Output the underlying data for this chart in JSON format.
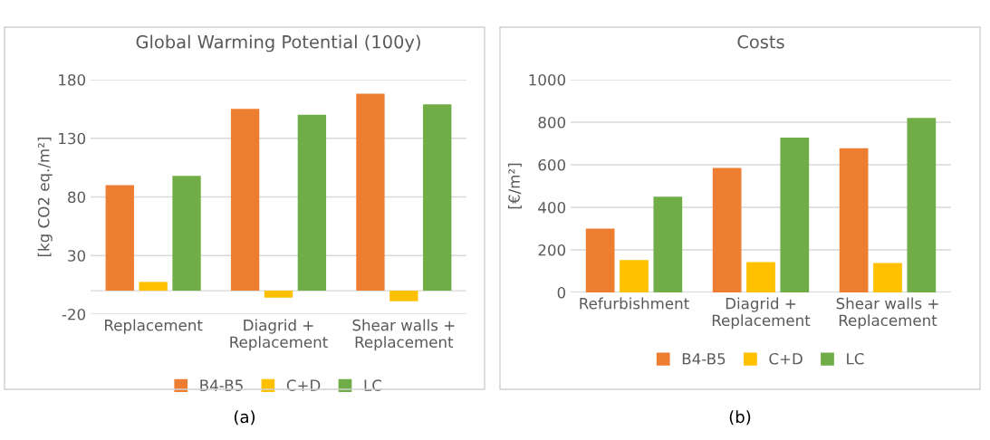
{
  "chart_data": [
    {
      "type": "bar",
      "title": "Global Warming Potential (100y)",
      "ylabel": "[kg CO2 eq./m²]",
      "categories": [
        "Replacement",
        "Diagrid +\nReplacement",
        "Shear walls +\nReplacement"
      ],
      "series": [
        {
          "name": "B4-B5",
          "color": "#ed7d31",
          "values": [
            90,
            155,
            168
          ]
        },
        {
          "name": "C+D",
          "color": "#ffc000",
          "values": [
            7.5,
            -6,
            -9
          ]
        },
        {
          "name": "LC",
          "color": "#70ad47",
          "values": [
            98,
            150,
            159
          ]
        }
      ],
      "ylim": [
        -20,
        180
      ],
      "yticks": [
        -20,
        30,
        80,
        130,
        180
      ],
      "grid": "y",
      "legend": "bottom",
      "annotations": [
        "(a)"
      ]
    },
    {
      "type": "bar",
      "title": "Costs",
      "ylabel": "[€/m²]",
      "categories": [
        "Refurbishment",
        "Diagrid +\nReplacement",
        "Shear walls +\nReplacement"
      ],
      "series": [
        {
          "name": "B4-B5",
          "color": "#ed7d31",
          "values": [
            300,
            585,
            678
          ]
        },
        {
          "name": "C+D",
          "color": "#ffc000",
          "values": [
            152,
            143,
            138
          ]
        },
        {
          "name": "LC",
          "color": "#70ad47",
          "values": [
            450,
            728,
            820
          ]
        }
      ],
      "ylim": [
        0,
        1000
      ],
      "yticks": [
        0,
        200,
        400,
        600,
        800,
        1000
      ],
      "grid": "y",
      "legend": "bottom",
      "annotations": [
        "(b)"
      ]
    }
  ]
}
